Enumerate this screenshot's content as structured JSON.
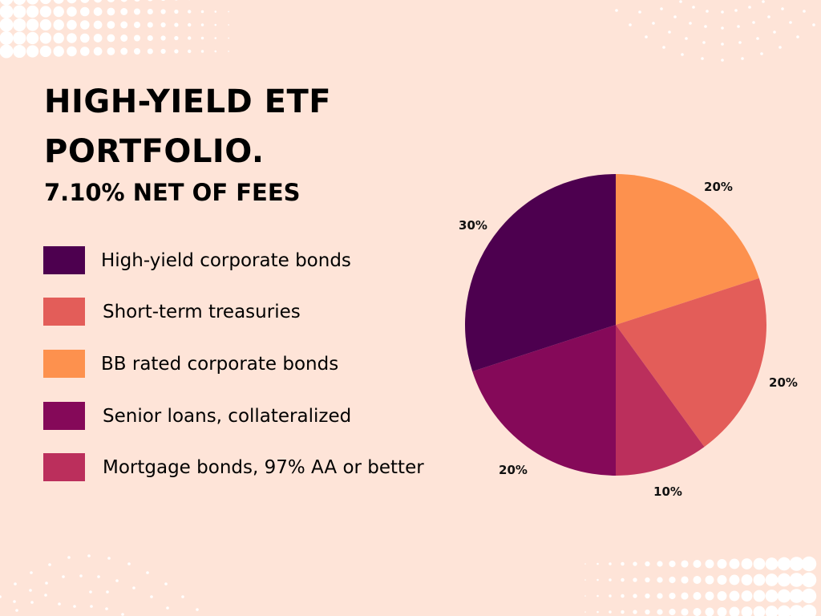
{
  "header": {
    "title_line1": "HIGH-YIELD ETF",
    "title_line2": "PORTFOLIO.",
    "subtitle": "7.10% NET OF FEES"
  },
  "legend": [
    {
      "label": "High-yield corporate bonds",
      "color": "#4d004f"
    },
    {
      "label": "Short-term treasuries",
      "color": "#e35d59"
    },
    {
      "label": "BB rated corporate bonds",
      "color": "#fd914e"
    },
    {
      "label": "Senior loans, collateralized",
      "color": "#850959"
    },
    {
      "label": "Mortgage bonds, 97% AA or better",
      "color": "#bb2f5c"
    }
  ],
  "colors": {
    "background": "#fee4d8",
    "dots": "#ffffff"
  },
  "chart_data": {
    "type": "pie",
    "title": "HIGH-YIELD ETF PORTFOLIO.",
    "subtitle": "7.10% NET OF FEES",
    "start_angle": "12 o'clock, clockwise",
    "categories": [
      "BB rated corporate bonds",
      "Short-term treasuries",
      "Mortgage bonds, 97% AA or better",
      "Senior loans, collateralized",
      "High-yield corporate bonds"
    ],
    "values": [
      20,
      20,
      10,
      20,
      30
    ],
    "labels": [
      "20%",
      "20%",
      "10%",
      "20%",
      "30%"
    ],
    "colors": [
      "#fd914e",
      "#e35d59",
      "#bb2f5c",
      "#850959",
      "#4d004f"
    ],
    "legend_position": "left",
    "legend_order": [
      "High-yield corporate bonds",
      "Short-term treasuries",
      "BB rated corporate bonds",
      "Senior loans, collateralized",
      "Mortgage bonds, 97% AA or better"
    ]
  }
}
